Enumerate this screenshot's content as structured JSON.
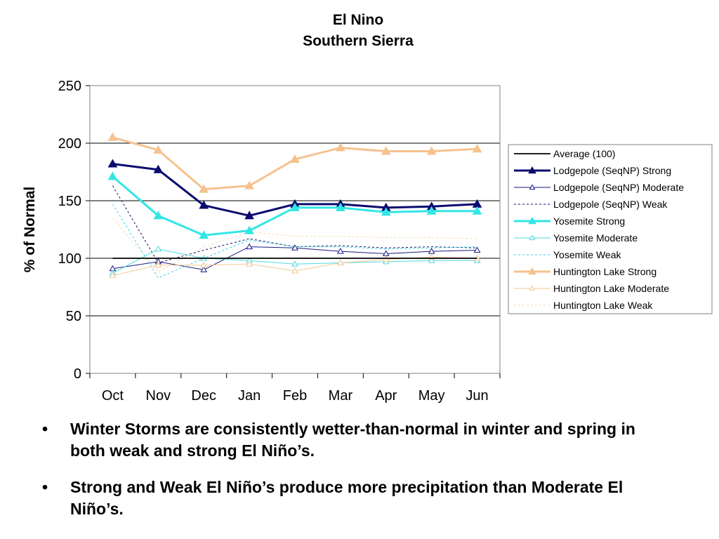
{
  "chart_data": {
    "type": "line",
    "title": "El Nino",
    "subtitle": "Southern Sierra",
    "xlabel": "",
    "ylabel": "% of Normal",
    "categories": [
      "Oct",
      "Nov",
      "Dec",
      "Jan",
      "Feb",
      "Mar",
      "Apr",
      "May",
      "Jun"
    ],
    "ylim": [
      0,
      250
    ],
    "yticks": [
      0,
      50,
      100,
      150,
      200,
      250
    ],
    "grid": true,
    "legend_position": "right",
    "series": [
      {
        "name": "Average (100)",
        "color": "#000000",
        "style": "solid",
        "marker": "none",
        "weight": "medium",
        "values": [
          100,
          100,
          100,
          100,
          100,
          100,
          100,
          100,
          100
        ]
      },
      {
        "name": "Lodgepole (SeqNP) Strong",
        "color": "#0a0a6e",
        "style": "solid",
        "marker": "triangle-filled",
        "weight": "heavy",
        "values": [
          182,
          177,
          146,
          137,
          147,
          147,
          144,
          145,
          147
        ]
      },
      {
        "name": "Lodgepole (SeqNP) Moderate",
        "color": "#1a1a80",
        "style": "solid",
        "marker": "triangle-open",
        "weight": "thin",
        "values": [
          91,
          97,
          90,
          110,
          109,
          106,
          104,
          106,
          107
        ]
      },
      {
        "name": "Lodgepole (SeqNP) Weak",
        "color": "#101060",
        "style": "dotted",
        "marker": "none",
        "weight": "thin",
        "values": [
          163,
          96,
          107,
          117,
          110,
          111,
          109,
          110,
          109
        ]
      },
      {
        "name": "Yosemite Strong",
        "color": "#33e6e6",
        "style": "solid",
        "marker": "triangle-filled",
        "weight": "heavy",
        "values": [
          171,
          137,
          120,
          124,
          144,
          144,
          140,
          141,
          141
        ]
      },
      {
        "name": "Yosemite Moderate",
        "color": "#4dd9e0",
        "style": "solid",
        "marker": "triangle-open",
        "weight": "thin",
        "values": [
          87,
          108,
          100,
          98,
          95,
          96,
          97,
          98,
          98
        ]
      },
      {
        "name": "Yosemite Weak",
        "color": "#33d6ea",
        "style": "dotted",
        "marker": "none",
        "weight": "thin",
        "values": [
          147,
          83,
          100,
          116,
          110,
          110,
          108,
          109,
          110
        ]
      },
      {
        "name": "Huntington Lake Strong",
        "color": "#f5c28e",
        "style": "solid",
        "marker": "triangle-filled",
        "weight": "heavy",
        "values": [
          205,
          194,
          160,
          163,
          186,
          196,
          193,
          193,
          195
        ]
      },
      {
        "name": "Huntington Lake Moderate",
        "color": "#f5c894",
        "style": "solid",
        "marker": "triangle-open",
        "weight": "thin",
        "values": [
          85,
          94,
          94,
          95,
          89,
          96,
          99,
          101,
          100
        ]
      },
      {
        "name": "Huntington Lake Weak",
        "color": "#f8d8b0",
        "style": "dotted",
        "marker": "none",
        "weight": "thin",
        "values": [
          135,
          88,
          110,
          123,
          119,
          119,
          118,
          118,
          117
        ]
      }
    ]
  },
  "bullets": [
    "Winter Storms are consistently wetter-than-normal in winter and spring in both weak and strong El Niño’s.",
    "Strong and Weak El Niño’s produce more precipitation than Moderate El Niño’s."
  ]
}
